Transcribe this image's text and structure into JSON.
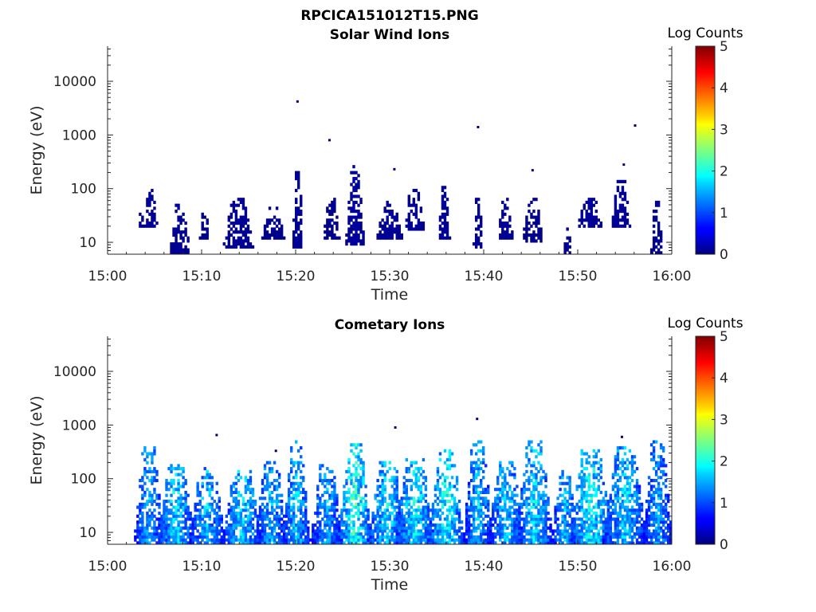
{
  "figure": {
    "title": "RPCICA151012T15.PNG"
  },
  "chart_data": [
    {
      "type": "heatmap",
      "title": "Solar Wind Ions",
      "xlabel": "Time",
      "ylabel": "Energy (eV)",
      "x_range": [
        "15:00",
        "16:00"
      ],
      "x_ticks": [
        "15:00",
        "15:10",
        "15:20",
        "15:30",
        "15:40",
        "15:50",
        "16:00"
      ],
      "y_scale": "log",
      "ylim": [
        6,
        45000
      ],
      "y_ticks": [
        10,
        100,
        1000,
        10000
      ],
      "y_tick_labels": [
        "10",
        "100",
        "1000",
        "10000"
      ],
      "colorbar": {
        "label": "Log Counts",
        "range": [
          0,
          5
        ],
        "ticks": [
          "0",
          "1",
          "2",
          "3",
          "4",
          "5"
        ],
        "colormap": "jet"
      },
      "bursts": [
        {
          "t": 3.5,
          "w": 0.3,
          "emin": 19,
          "emax": 45,
          "lvl": 0.1
        },
        {
          "t": 4.6,
          "w": 0.7,
          "emin": 19,
          "emax": 110,
          "lvl": 0.15
        },
        {
          "t": 7.7,
          "w": 1.1,
          "emin": 6,
          "emax": 50,
          "lvl": 0.15
        },
        {
          "t": 10.3,
          "w": 0.5,
          "emin": 12,
          "emax": 45,
          "lvl": 0.1
        },
        {
          "t": 13.9,
          "w": 1.6,
          "emin": 8,
          "emax": 70,
          "lvl": 0.15
        },
        {
          "t": 17.6,
          "w": 1.2,
          "emin": 12,
          "emax": 45,
          "lvl": 0.1
        },
        {
          "t": 20.2,
          "w": 0.6,
          "emin": 8,
          "emax": 200,
          "lvl": 0.15
        },
        {
          "t": 23.8,
          "w": 0.9,
          "emin": 11,
          "emax": 70,
          "lvl": 0.1
        },
        {
          "t": 26.3,
          "w": 1.0,
          "emin": 9,
          "emax": 280,
          "lvl": 0.2
        },
        {
          "t": 30.0,
          "w": 1.4,
          "emin": 12,
          "emax": 60,
          "lvl": 0.15
        },
        {
          "t": 32.6,
          "w": 1.1,
          "emin": 16,
          "emax": 110,
          "lvl": 0.15
        },
        {
          "t": 35.8,
          "w": 0.6,
          "emin": 12,
          "emax": 110,
          "lvl": 0.15
        },
        {
          "t": 39.4,
          "w": 0.5,
          "emin": 8,
          "emax": 70,
          "lvl": 0.1
        },
        {
          "t": 42.3,
          "w": 0.8,
          "emin": 12,
          "emax": 70,
          "lvl": 0.15
        },
        {
          "t": 45.2,
          "w": 1.1,
          "emin": 10,
          "emax": 70,
          "lvl": 0.1
        },
        {
          "t": 48.9,
          "w": 0.4,
          "emin": 6,
          "emax": 19,
          "lvl": 0.1
        },
        {
          "t": 51.3,
          "w": 1.3,
          "emin": 20,
          "emax": 70,
          "lvl": 0.15
        },
        {
          "t": 54.6,
          "w": 1.0,
          "emin": 20,
          "emax": 150,
          "lvl": 0.15
        },
        {
          "t": 58.4,
          "w": 0.6,
          "emin": 6,
          "emax": 70,
          "lvl": 0.1
        }
      ],
      "isolated_points": [
        {
          "t": 20.2,
          "e": 4200
        },
        {
          "t": 23.6,
          "e": 800
        },
        {
          "t": 30.5,
          "e": 230
        },
        {
          "t": 39.4,
          "e": 1400
        },
        {
          "t": 45.2,
          "e": 220
        },
        {
          "t": 54.9,
          "e": 280
        },
        {
          "t": 56.1,
          "e": 1500
        }
      ]
    },
    {
      "type": "heatmap",
      "title": "Cometary Ions",
      "xlabel": "Time",
      "ylabel": "Energy (eV)",
      "x_range": [
        "15:00",
        "16:00"
      ],
      "x_ticks": [
        "15:00",
        "15:10",
        "15:20",
        "15:30",
        "15:40",
        "15:50",
        "16:00"
      ],
      "y_scale": "log",
      "ylim": [
        6,
        45000
      ],
      "y_ticks": [
        10,
        100,
        1000,
        10000
      ],
      "y_tick_labels": [
        "10",
        "100",
        "1000",
        "10000"
      ],
      "colorbar": {
        "label": "Log Counts",
        "range": [
          0,
          5
        ],
        "ticks": [
          "0",
          "1",
          "2",
          "3",
          "4",
          "5"
        ],
        "colormap": "jet"
      },
      "bursts": [
        {
          "t": 4.4,
          "w": 1.6,
          "emin": 6,
          "emax": 380,
          "lvl": 1.6
        },
        {
          "t": 7.3,
          "w": 2.0,
          "emin": 6,
          "emax": 190,
          "lvl": 1.9
        },
        {
          "t": 10.6,
          "w": 2.0,
          "emin": 6,
          "emax": 160,
          "lvl": 1.7
        },
        {
          "t": 14.3,
          "w": 2.2,
          "emin": 6,
          "emax": 150,
          "lvl": 1.9
        },
        {
          "t": 17.4,
          "w": 1.8,
          "emin": 6,
          "emax": 200,
          "lvl": 1.7
        },
        {
          "t": 20.1,
          "w": 1.4,
          "emin": 6,
          "emax": 550,
          "lvl": 1.8
        },
        {
          "t": 23.3,
          "w": 1.8,
          "emin": 6,
          "emax": 180,
          "lvl": 1.6
        },
        {
          "t": 26.3,
          "w": 1.8,
          "emin": 6,
          "emax": 450,
          "lvl": 2.3
        },
        {
          "t": 29.8,
          "w": 2.2,
          "emin": 6,
          "emax": 200,
          "lvl": 1.9
        },
        {
          "t": 32.7,
          "w": 2.2,
          "emin": 6,
          "emax": 250,
          "lvl": 2.0
        },
        {
          "t": 36.0,
          "w": 2.0,
          "emin": 6,
          "emax": 350,
          "lvl": 2.1
        },
        {
          "t": 39.4,
          "w": 1.6,
          "emin": 6,
          "emax": 550,
          "lvl": 1.7
        },
        {
          "t": 42.4,
          "w": 2.0,
          "emin": 6,
          "emax": 220,
          "lvl": 1.8
        },
        {
          "t": 45.4,
          "w": 2.0,
          "emin": 6,
          "emax": 550,
          "lvl": 1.9
        },
        {
          "t": 48.6,
          "w": 1.4,
          "emin": 6,
          "emax": 150,
          "lvl": 1.7
        },
        {
          "t": 51.4,
          "w": 2.4,
          "emin": 6,
          "emax": 350,
          "lvl": 2.1
        },
        {
          "t": 55.0,
          "w": 2.4,
          "emin": 6,
          "emax": 420,
          "lvl": 1.8
        },
        {
          "t": 58.5,
          "w": 1.6,
          "emin": 6,
          "emax": 550,
          "lvl": 1.6
        }
      ],
      "isolated_points": [
        {
          "t": 11.6,
          "e": 650
        },
        {
          "t": 17.9,
          "e": 330
        },
        {
          "t": 30.6,
          "e": 900
        },
        {
          "t": 39.3,
          "e": 1300
        },
        {
          "t": 54.7,
          "e": 600
        }
      ]
    }
  ]
}
